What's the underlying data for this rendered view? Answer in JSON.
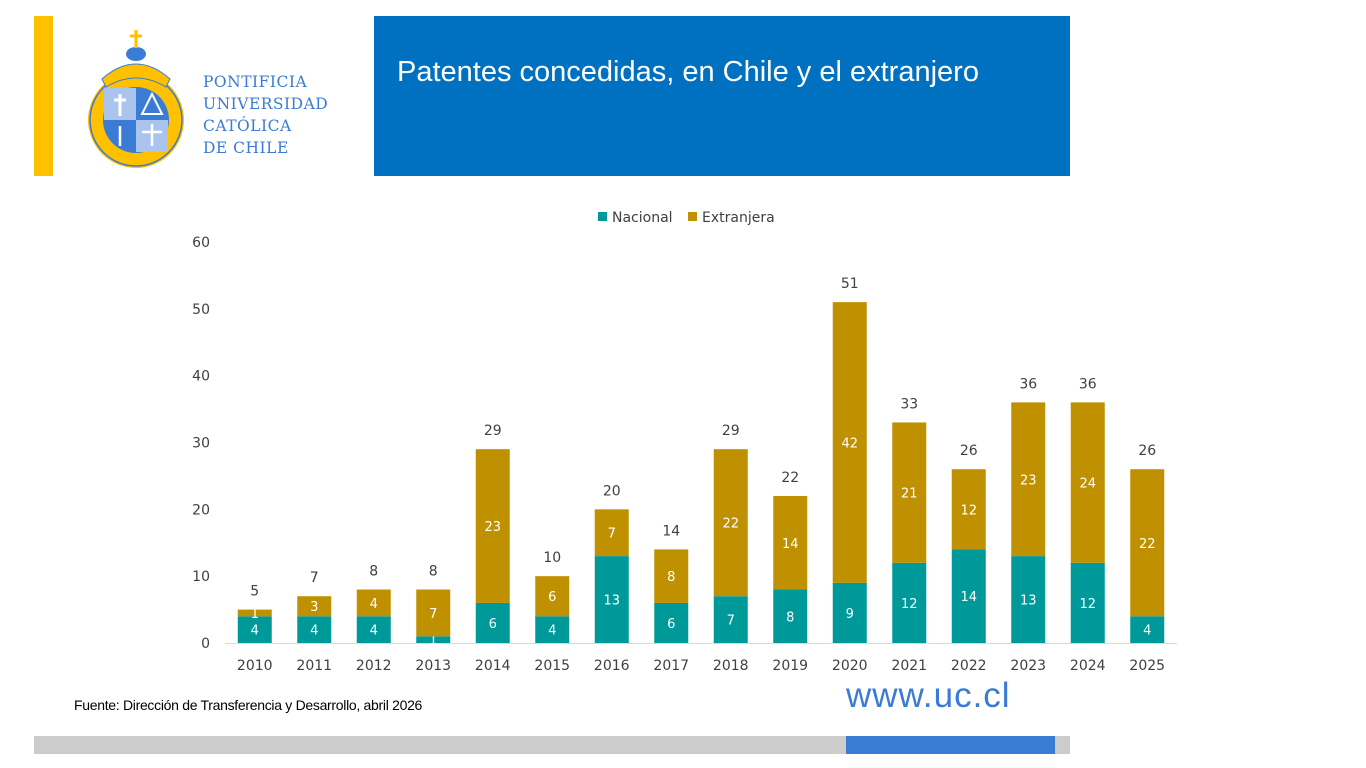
{
  "header": {
    "title": "Patentes concedidas, en Chile y el extranjero",
    "logo_lines": [
      "PONTIFICIA",
      "UNIVERSIDAD",
      "CATÓLICA",
      "DE CHILE"
    ],
    "brand_yellow": "#ffc000",
    "brand_blue": "#0070c0"
  },
  "footer": {
    "source": "Fuente: Dirección de Transferencia y Desarrollo, abril 2026",
    "website": "www.uc.cl"
  },
  "chart_data": {
    "type": "bar",
    "stacked": true,
    "title": "",
    "xlabel": "",
    "ylabel": "",
    "ylim": [
      0,
      60
    ],
    "yticks": [
      0,
      10,
      20,
      30,
      40,
      50,
      60
    ],
    "grid": false,
    "legend": "top-center",
    "categories": [
      "2010",
      "2011",
      "2012",
      "2013",
      "2014",
      "2015",
      "2016",
      "2017",
      "2018",
      "2019",
      "2020",
      "2021",
      "2022",
      "2023",
      "2024",
      "2025"
    ],
    "series": [
      {
        "name": "Nacional",
        "color": "#009999",
        "values": [
          4,
          4,
          4,
          1,
          6,
          4,
          13,
          6,
          7,
          8,
          9,
          12,
          14,
          13,
          12,
          4
        ]
      },
      {
        "name": "Extranjera",
        "color": "#bf9000",
        "values": [
          1,
          3,
          4,
          7,
          23,
          6,
          7,
          8,
          22,
          14,
          42,
          21,
          12,
          23,
          24,
          22
        ]
      }
    ],
    "totals": [
      5,
      7,
      8,
      8,
      29,
      10,
      20,
      14,
      29,
      22,
      51,
      33,
      26,
      36,
      36,
      26
    ]
  }
}
